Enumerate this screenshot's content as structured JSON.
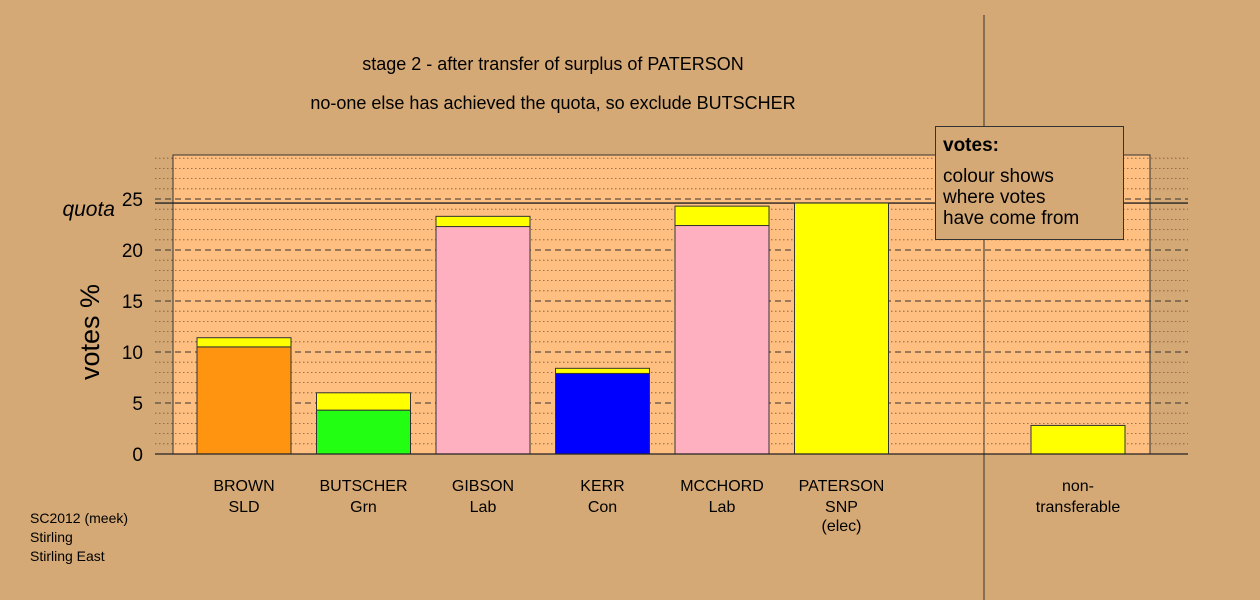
{
  "header": {
    "title": "stage 2 - after transfer of surplus of PATERSON",
    "subtitle": "no-one else has achieved the quota, so exclude BUTSCHER"
  },
  "legend": {
    "title": "votes:",
    "lines": [
      "colour shows",
      "where votes",
      "have come from"
    ]
  },
  "footer": {
    "lines": [
      "SC2012 (meek)",
      "Stirling",
      "Stirling East"
    ]
  },
  "chart_data": {
    "type": "bar",
    "stacked": true,
    "ylabel": "votes %",
    "ylim": [
      0,
      29.5
    ],
    "yticks": [
      0,
      5,
      10,
      15,
      20,
      25
    ],
    "quota": 24.6,
    "quota_label": "quota",
    "grid": true,
    "legend_position": "top-right",
    "candidates": [
      {
        "name": "BROWN",
        "party": "SLD",
        "note": "",
        "segments": [
          {
            "value": 10.5,
            "color": "#ff9411"
          },
          {
            "value": 0.9,
            "color": "#ffff00"
          }
        ]
      },
      {
        "name": "BUTSCHER",
        "party": "Grn",
        "note": "",
        "segments": [
          {
            "value": 4.3,
            "color": "#22ff12"
          },
          {
            "value": 1.7,
            "color": "#ffff00"
          }
        ]
      },
      {
        "name": "GIBSON",
        "party": "Lab",
        "note": "",
        "segments": [
          {
            "value": 22.3,
            "color": "#ffb0c0"
          },
          {
            "value": 1.0,
            "color": "#ffff00"
          }
        ]
      },
      {
        "name": "KERR",
        "party": "Con",
        "note": "",
        "segments": [
          {
            "value": 7.9,
            "color": "#0000ff"
          },
          {
            "value": 0.5,
            "color": "#ffff00"
          }
        ]
      },
      {
        "name": "MCCHORD",
        "party": "Lab",
        "note": "",
        "segments": [
          {
            "value": 22.4,
            "color": "#ffb0c0"
          },
          {
            "value": 1.9,
            "color": "#ffff00"
          }
        ]
      },
      {
        "name": "PATERSON",
        "party": "SNP",
        "note": "(elec)",
        "segments": [
          {
            "value": 24.6,
            "color": "#ffff00"
          }
        ]
      }
    ],
    "nontransferable": {
      "label_lines": [
        "non-",
        "transferable"
      ],
      "value": 2.8,
      "color": "#ffff00"
    }
  }
}
